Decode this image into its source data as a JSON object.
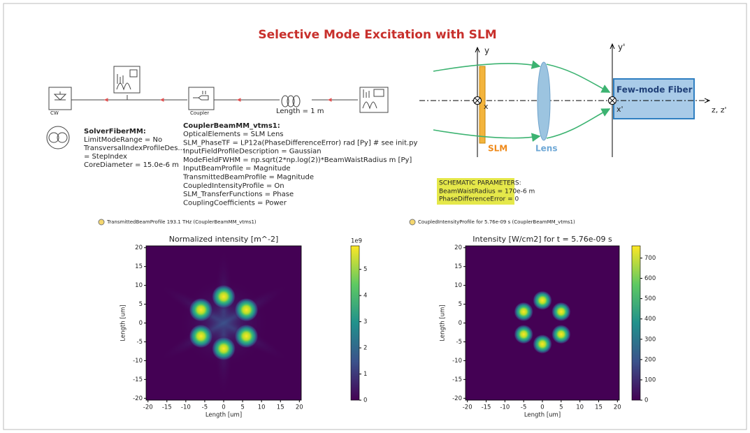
{
  "title": "Selective Mode Excitation with SLM",
  "diagram": {
    "source_label": "CW",
    "coupler_label": "Coupler",
    "fiber_length": "Length = 1 m"
  },
  "solver": {
    "heading": "SolverFiberMM:",
    "lines": [
      "LimitModeRange = No",
      "TransversalIndexProfileDes...",
      "= StepIndex",
      "CoreDiameter = 15.0e-6 m"
    ]
  },
  "coupler": {
    "heading": "CouplerBeamMM_vtms1:",
    "lines": [
      "OpticalElements = SLM Lens",
      "SLM_PhaseTF = LP12a(PhaseDifferenceError) rad [Py] # see init.py",
      "InputFieldProfileDescription = Gaussian",
      "ModeFieldFWHM = np.sqrt(2*np.log(2))*BeamWaistRadius m [Py]",
      "InputBeamProfile = Magnitude",
      "TransmittedBeamProfile = Magnitude",
      "CoupledIntensityProfile = On",
      "SLM_TransferFunctions = Phase",
      "CouplingCoefficients = Power"
    ]
  },
  "schematic": {
    "axis_y": "y",
    "axis_y2": "y'",
    "axis_x": "x",
    "axis_x2": "x'",
    "axis_z": "z, z'",
    "slm": "SLM",
    "lens": "Lens",
    "fiber": "Few-mode Fiber",
    "params_heading": "SCHEMATIC PARAMETERS:",
    "params": [
      "BeamWaistRadius = 170e-6 m",
      "PhaseDifferenceError = 0"
    ]
  },
  "plots": [
    {
      "caption": "TransmittedBeamProfile 193.1 THz (CouplerBeamMM_vtms1)",
      "title": "Normalized intensity [m^-2]",
      "xlabel": "Length [um]",
      "ylabel": "Length [um]",
      "xlim": [
        -20.5,
        20.5
      ],
      "ylim": [
        -20.5,
        20.5
      ],
      "xticks": [
        -20,
        -15,
        -10,
        -5,
        0,
        5,
        10,
        15,
        20
      ],
      "yticks": [
        -20,
        -15,
        -10,
        -5,
        0,
        5,
        10,
        15,
        20
      ],
      "colorbar": {
        "lim": [
          0,
          5.9
        ],
        "ticks": [
          0,
          1,
          2,
          3,
          4,
          5
        ],
        "exponent": "1e9"
      }
    },
    {
      "caption": "CoupledIntensityProfile for 5.76e-09 s (CouplerBeamMM_vtms1)",
      "title": "Intensity [W/cm2] for t = 5.76e-09 s",
      "xlabel": "Length [um]",
      "ylabel": "Length [um]",
      "xlim": [
        -20.5,
        20.5
      ],
      "ylim": [
        -20.5,
        20.5
      ],
      "xticks": [
        -20,
        -15,
        -10,
        -5,
        0,
        5,
        10,
        15,
        20
      ],
      "yticks": [
        -20,
        -15,
        -10,
        -5,
        0,
        5,
        10,
        15,
        20
      ],
      "colorbar": {
        "lim": [
          0,
          760
        ],
        "ticks": [
          0,
          100,
          200,
          300,
          400,
          500,
          600,
          700
        ]
      }
    }
  ]
}
